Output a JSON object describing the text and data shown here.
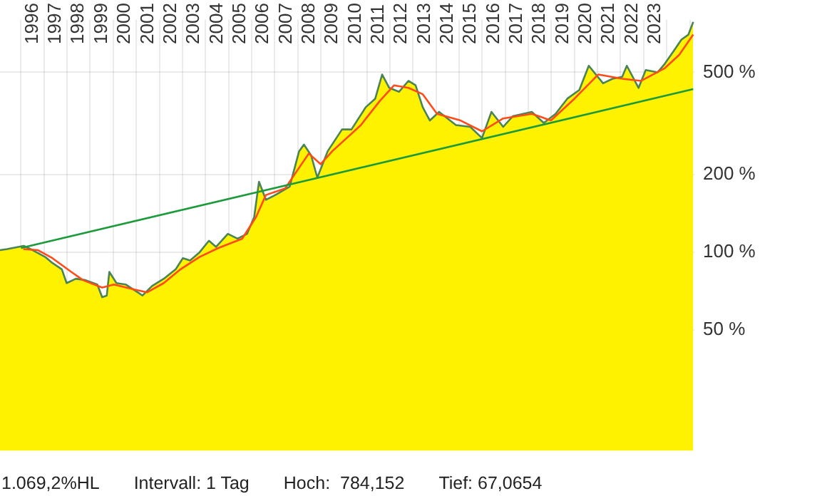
{
  "chart_data": {
    "type": "area",
    "log": "y",
    "grid": true,
    "legend": false,
    "xlim": [
      1995.09,
      2025.2
    ],
    "xticks": [
      {
        "value": 1996,
        "label": null
      },
      {
        "value": 1996.5,
        "label": "1996"
      },
      {
        "value": 1997,
        "label": null
      },
      {
        "value": 1997.5,
        "label": "1997"
      },
      {
        "value": 1998,
        "label": null
      },
      {
        "value": 1998.5,
        "label": "1998"
      },
      {
        "value": 1999,
        "label": null
      },
      {
        "value": 1999.5,
        "label": "1999"
      },
      {
        "value": 2000,
        "label": null
      },
      {
        "value": 2000.5,
        "label": "2000"
      },
      {
        "value": 2001,
        "label": null
      },
      {
        "value": 2001.5,
        "label": "2001"
      },
      {
        "value": 2002,
        "label": null
      },
      {
        "value": 2002.5,
        "label": "2002"
      },
      {
        "value": 2003,
        "label": null
      },
      {
        "value": 2003.5,
        "label": "2003"
      },
      {
        "value": 2004,
        "label": null
      },
      {
        "value": 2004.5,
        "label": "2004"
      },
      {
        "value": 2005,
        "label": null
      },
      {
        "value": 2005.5,
        "label": "2005"
      },
      {
        "value": 2006,
        "label": null
      },
      {
        "value": 2006.5,
        "label": "2006"
      },
      {
        "value": 2007,
        "label": null
      },
      {
        "value": 2007.5,
        "label": "2007"
      },
      {
        "value": 2008,
        "label": null
      },
      {
        "value": 2008.5,
        "label": "2008"
      },
      {
        "value": 2009,
        "label": null
      },
      {
        "value": 2009.5,
        "label": "2009"
      },
      {
        "value": 2010,
        "label": null
      },
      {
        "value": 2010.5,
        "label": "2010"
      },
      {
        "value": 2011,
        "label": null
      },
      {
        "value": 2011.5,
        "label": "2011"
      },
      {
        "value": 2012,
        "label": null
      },
      {
        "value": 2012.5,
        "label": "2012"
      },
      {
        "value": 2013,
        "label": null
      },
      {
        "value": 2013.5,
        "label": "2013"
      },
      {
        "value": 2014,
        "label": null
      },
      {
        "value": 2014.5,
        "label": "2014"
      },
      {
        "value": 2015,
        "label": null
      },
      {
        "value": 2015.5,
        "label": "2015"
      },
      {
        "value": 2016,
        "label": null
      },
      {
        "value": 2016.5,
        "label": "2016"
      },
      {
        "value": 2017,
        "label": null
      },
      {
        "value": 2017.5,
        "label": "2017"
      },
      {
        "value": 2018,
        "label": null
      },
      {
        "value": 2018.5,
        "label": "2018"
      },
      {
        "value": 2019,
        "label": null
      },
      {
        "value": 2019.5,
        "label": "2019"
      },
      {
        "value": 2020,
        "label": null
      },
      {
        "value": 2020.5,
        "label": "2020"
      },
      {
        "value": 2021,
        "label": null
      },
      {
        "value": 2021.5,
        "label": "2021"
      },
      {
        "value": 2022,
        "label": null
      },
      {
        "value": 2022.5,
        "label": "2022"
      },
      {
        "value": 2023,
        "label": null
      },
      {
        "value": 2023.5,
        "label": "2023"
      },
      {
        "value": 2024,
        "label": null
      },
      {
        "value": 2025,
        "label": null
      }
    ],
    "ylim": [
      17,
      800
    ],
    "yticks": [
      {
        "value": 50,
        "label": "50 %"
      },
      {
        "value": 100,
        "label": "100 %"
      },
      {
        "value": 200,
        "label": "200 %"
      },
      {
        "value": 500,
        "label": "500 %"
      }
    ],
    "series": [
      {
        "color": "#fff200",
        "x": [
          1995.09,
          1995.4,
          1996.12,
          1996.51,
          1997.05,
          1997.36,
          1997.77,
          1997.98,
          1998.38,
          1998.8,
          1999.31,
          1999.52,
          1999.72,
          1999.83,
          2000.14,
          2000.55,
          2001.06,
          2001.27,
          2001.68,
          2002.19,
          2002.71,
          2003.02,
          2003.33,
          2003.74,
          2004.15,
          2004.46,
          2004.97,
          2005.39,
          2005.8,
          2006.11,
          2006.32,
          2006.62,
          2007.03,
          2007.65,
          2008.06,
          2008.27,
          2008.58,
          2008.85,
          2009.3,
          2009.92,
          2010.33,
          2010.95,
          2011.36,
          2011.66,
          2011.97,
          2012.39,
          2012.8,
          2013.11,
          2013.42,
          2013.73,
          2014.13,
          2014.86,
          2015.48,
          2015.99,
          2016.4,
          2016.91,
          2017.33,
          2018.15,
          2018.67,
          2019.18,
          2019.69,
          2020.21,
          2020.62,
          2021.24,
          2021.65,
          2022.07,
          2022.27,
          2022.78,
          2023.09,
          2023.61,
          2023.92,
          2024.33,
          2024.64,
          2024.94,
          2025.15
        ],
        "values": [
          102,
          103,
          106,
          102,
          96,
          91,
          86,
          76,
          79,
          78,
          75,
          67,
          68,
          84,
          76,
          75,
          70,
          68,
          74,
          79,
          86,
          95,
          93,
          100,
          111,
          105,
          118,
          113,
          118,
          137,
          188,
          160,
          167,
          180,
          247,
          262,
          238,
          195,
          247,
          300,
          300,
          366,
          395,
          490,
          435,
          420,
          463,
          445,
          366,
          325,
          351,
          312,
          307,
          278,
          351,
          307,
          338,
          351,
          318,
          345,
          395,
          427,
          530,
          453,
          472,
          480,
          530,
          435,
          510,
          500,
          540,
          610,
          670,
          700,
          784
        ]
      },
      {
        "type": "line",
        "color": "#4a8456",
        "x": [
          1995.09,
          1995.4,
          1996.12,
          1996.51,
          1997.05,
          1997.36,
          1997.77,
          1997.98,
          1998.38,
          1998.8,
          1999.31,
          1999.52,
          1999.72,
          1999.83,
          2000.14,
          2000.55,
          2001.06,
          2001.27,
          2001.68,
          2002.19,
          2002.71,
          2003.02,
          2003.33,
          2003.74,
          2004.15,
          2004.46,
          2004.97,
          2005.39,
          2005.8,
          2006.11,
          2006.32,
          2006.62,
          2007.03,
          2007.65,
          2008.06,
          2008.27,
          2008.58,
          2008.85,
          2009.3,
          2009.92,
          2010.33,
          2010.95,
          2011.36,
          2011.66,
          2011.97,
          2012.39,
          2012.8,
          2013.11,
          2013.42,
          2013.73,
          2014.13,
          2014.86,
          2015.48,
          2015.99,
          2016.4,
          2016.91,
          2017.33,
          2018.15,
          2018.67,
          2019.18,
          2019.69,
          2020.21,
          2020.62,
          2021.24,
          2021.65,
          2022.07,
          2022.27,
          2022.78,
          2023.09,
          2023.61,
          2023.92,
          2024.33,
          2024.64,
          2024.94,
          2025.15
        ],
        "values": [
          102,
          103,
          106,
          102,
          96,
          91,
          86,
          76,
          79,
          78,
          75,
          67,
          68,
          84,
          76,
          75,
          70,
          68,
          74,
          79,
          86,
          95,
          93,
          100,
          111,
          105,
          118,
          113,
          118,
          137,
          188,
          160,
          167,
          180,
          247,
          262,
          238,
          195,
          247,
          300,
          300,
          366,
          395,
          490,
          435,
          420,
          463,
          445,
          366,
          325,
          351,
          312,
          307,
          278,
          351,
          307,
          338,
          351,
          318,
          345,
          395,
          427,
          530,
          453,
          472,
          480,
          530,
          435,
          510,
          500,
          540,
          610,
          670,
          700,
          784
        ]
      },
      {
        "type": "line",
        "color": "#ff4a1a",
        "x": [
          1996.1,
          1996.74,
          1997.36,
          1998.18,
          1998.69,
          1999.52,
          2000.03,
          2000.85,
          2001.47,
          2002.19,
          2002.92,
          2003.74,
          2004.56,
          2005.59,
          2006.19,
          2006.62,
          2007.45,
          2008.48,
          2008.99,
          2009.5,
          2010.74,
          2011.56,
          2012.18,
          2012.8,
          2013.42,
          2014.04,
          2015.06,
          2015.99,
          2016.91,
          2018.15,
          2018.98,
          2020.0,
          2021.03,
          2022.07,
          2022.89,
          2023.92,
          2024.54,
          2025.15
        ],
        "values": [
          103,
          102,
          95,
          84,
          78,
          73,
          75,
          72,
          70,
          76,
          86,
          96,
          104,
          113,
          137,
          167,
          177,
          242,
          220,
          247,
          312,
          387,
          445,
          435,
          411,
          345,
          325,
          295,
          331,
          345,
          325,
          395,
          490,
          472,
          463,
          519,
          584,
          700
        ]
      },
      {
        "type": "line",
        "color": "#1d9a3c",
        "x": [
          1996.0,
          2025.15
        ],
        "values": [
          104,
          430
        ]
      }
    ],
    "annotations": [
      "1.069,2%HL",
      "Intervall: 1 Tag",
      "Hoch:  784,152",
      "Tief: 67,0654"
    ]
  }
}
